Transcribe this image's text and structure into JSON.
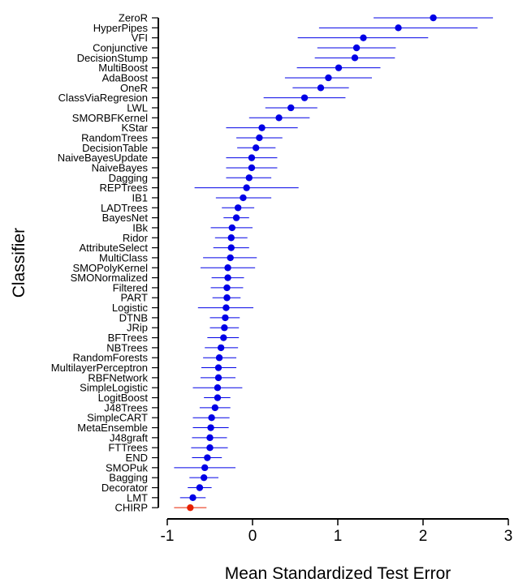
{
  "chart_data": {
    "type": "scatter",
    "title": "",
    "xlabel": "Mean Standardized Test Error",
    "ylabel": "Classifier",
    "xlim": [
      -1,
      3
    ],
    "xticks": [
      "-1",
      "0",
      "1",
      "2",
      "3"
    ],
    "grid": false,
    "legend": "none",
    "error_bars": true,
    "colors": {
      "default": "#0000e6",
      "highlight": "#e62000"
    },
    "points": [
      {
        "name": "ZeroR",
        "mean": 2.12,
        "lo": 1.42,
        "hi": 2.82,
        "highlight": false
      },
      {
        "name": "HyperPipes",
        "mean": 1.71,
        "lo": 0.78,
        "hi": 2.64,
        "highlight": false
      },
      {
        "name": "VFI",
        "mean": 1.3,
        "lo": 0.53,
        "hi": 2.06,
        "highlight": false
      },
      {
        "name": "Conjunctive",
        "mean": 1.22,
        "lo": 0.76,
        "hi": 1.68,
        "highlight": false
      },
      {
        "name": "DecisionStump",
        "mean": 1.2,
        "lo": 0.73,
        "hi": 1.67,
        "highlight": false
      },
      {
        "name": "MultiBoost",
        "mean": 1.01,
        "lo": 0.52,
        "hi": 1.5,
        "highlight": false
      },
      {
        "name": "AdaBoost",
        "mean": 0.89,
        "lo": 0.38,
        "hi": 1.4,
        "highlight": false
      },
      {
        "name": "OneR",
        "mean": 0.8,
        "lo": 0.47,
        "hi": 1.13,
        "highlight": false
      },
      {
        "name": "ClassViaRegresion",
        "mean": 0.61,
        "lo": 0.13,
        "hi": 1.09,
        "highlight": false
      },
      {
        "name": "LWL",
        "mean": 0.45,
        "lo": 0.15,
        "hi": 0.76,
        "highlight": false
      },
      {
        "name": "SMORBFKernel",
        "mean": 0.31,
        "lo": -0.04,
        "hi": 0.67,
        "highlight": false
      },
      {
        "name": "KStar",
        "mean": 0.11,
        "lo": -0.31,
        "hi": 0.53,
        "highlight": false
      },
      {
        "name": "RandomTrees",
        "mean": 0.08,
        "lo": -0.19,
        "hi": 0.35,
        "highlight": false
      },
      {
        "name": "DecisionTable",
        "mean": 0.04,
        "lo": -0.18,
        "hi": 0.27,
        "highlight": false
      },
      {
        "name": "NaiveBayesUpdate",
        "mean": -0.01,
        "lo": -0.31,
        "hi": 0.29,
        "highlight": false
      },
      {
        "name": "NaiveBayes",
        "mean": -0.01,
        "lo": -0.31,
        "hi": 0.29,
        "highlight": false
      },
      {
        "name": "Dagging",
        "mean": -0.04,
        "lo": -0.31,
        "hi": 0.22,
        "highlight": false
      },
      {
        "name": "REPTrees",
        "mean": -0.07,
        "lo": -0.68,
        "hi": 0.54,
        "highlight": false
      },
      {
        "name": "IB1",
        "mean": -0.11,
        "lo": -0.43,
        "hi": 0.22,
        "highlight": false
      },
      {
        "name": "LADTrees",
        "mean": -0.17,
        "lo": -0.36,
        "hi": 0.02,
        "highlight": false
      },
      {
        "name": "BayesNet",
        "mean": -0.19,
        "lo": -0.34,
        "hi": -0.04,
        "highlight": false
      },
      {
        "name": "IBk",
        "mean": -0.24,
        "lo": -0.49,
        "hi": 0.0,
        "highlight": false
      },
      {
        "name": "Ridor",
        "mean": -0.25,
        "lo": -0.44,
        "hi": -0.06,
        "highlight": false
      },
      {
        "name": "AttributeSelect",
        "mean": -0.25,
        "lo": -0.46,
        "hi": -0.04,
        "highlight": false
      },
      {
        "name": "MultiClass",
        "mean": -0.26,
        "lo": -0.58,
        "hi": 0.05,
        "highlight": false
      },
      {
        "name": "SMOPolyKernel",
        "mean": -0.29,
        "lo": -0.61,
        "hi": 0.03,
        "highlight": false
      },
      {
        "name": "SMONormalized",
        "mean": -0.29,
        "lo": -0.48,
        "hi": -0.1,
        "highlight": false
      },
      {
        "name": "Filtered",
        "mean": -0.3,
        "lo": -0.49,
        "hi": -0.11,
        "highlight": false
      },
      {
        "name": "PART",
        "mean": -0.3,
        "lo": -0.47,
        "hi": -0.14,
        "highlight": false
      },
      {
        "name": "Logistic",
        "mean": -0.31,
        "lo": -0.64,
        "hi": 0.01,
        "highlight": false
      },
      {
        "name": "DTNB",
        "mean": -0.32,
        "lo": -0.5,
        "hi": -0.15,
        "highlight": false
      },
      {
        "name": "JRip",
        "mean": -0.33,
        "lo": -0.5,
        "hi": -0.16,
        "highlight": false
      },
      {
        "name": "BFTrees",
        "mean": -0.34,
        "lo": -0.53,
        "hi": -0.16,
        "highlight": false
      },
      {
        "name": "NBTrees",
        "mean": -0.37,
        "lo": -0.56,
        "hi": -0.17,
        "highlight": false
      },
      {
        "name": "RandomForests",
        "mean": -0.39,
        "lo": -0.58,
        "hi": -0.19,
        "highlight": false
      },
      {
        "name": "MultilayerPerceptron",
        "mean": -0.4,
        "lo": -0.6,
        "hi": -0.19,
        "highlight": false
      },
      {
        "name": "RBFNetwork",
        "mean": -0.4,
        "lo": -0.61,
        "hi": -0.2,
        "highlight": false
      },
      {
        "name": "SimpleLogistic",
        "mean": -0.41,
        "lo": -0.7,
        "hi": -0.12,
        "highlight": false
      },
      {
        "name": "LogitBoost",
        "mean": -0.41,
        "lo": -0.57,
        "hi": -0.26,
        "highlight": false
      },
      {
        "name": "J48Trees",
        "mean": -0.44,
        "lo": -0.62,
        "hi": -0.26,
        "highlight": false
      },
      {
        "name": "SimpleCART",
        "mean": -0.48,
        "lo": -0.7,
        "hi": -0.27,
        "highlight": false
      },
      {
        "name": "MetaEnsemble",
        "mean": -0.49,
        "lo": -0.7,
        "hi": -0.28,
        "highlight": false
      },
      {
        "name": "J48graft",
        "mean": -0.5,
        "lo": -0.71,
        "hi": -0.3,
        "highlight": false
      },
      {
        "name": "FTTrees",
        "mean": -0.5,
        "lo": -0.72,
        "hi": -0.29,
        "highlight": false
      },
      {
        "name": "END",
        "mean": -0.53,
        "lo": -0.71,
        "hi": -0.36,
        "highlight": false
      },
      {
        "name": "SMOPuk",
        "mean": -0.56,
        "lo": -0.92,
        "hi": -0.2,
        "highlight": false
      },
      {
        "name": "Bagging",
        "mean": -0.57,
        "lo": -0.74,
        "hi": -0.4,
        "highlight": false
      },
      {
        "name": "Decorator",
        "mean": -0.62,
        "lo": -0.76,
        "hi": -0.48,
        "highlight": false
      },
      {
        "name": "LMT",
        "mean": -0.7,
        "lo": -0.85,
        "hi": -0.55,
        "highlight": false
      },
      {
        "name": "CHIRP",
        "mean": -0.73,
        "lo": -0.92,
        "hi": -0.54,
        "highlight": true
      }
    ]
  }
}
